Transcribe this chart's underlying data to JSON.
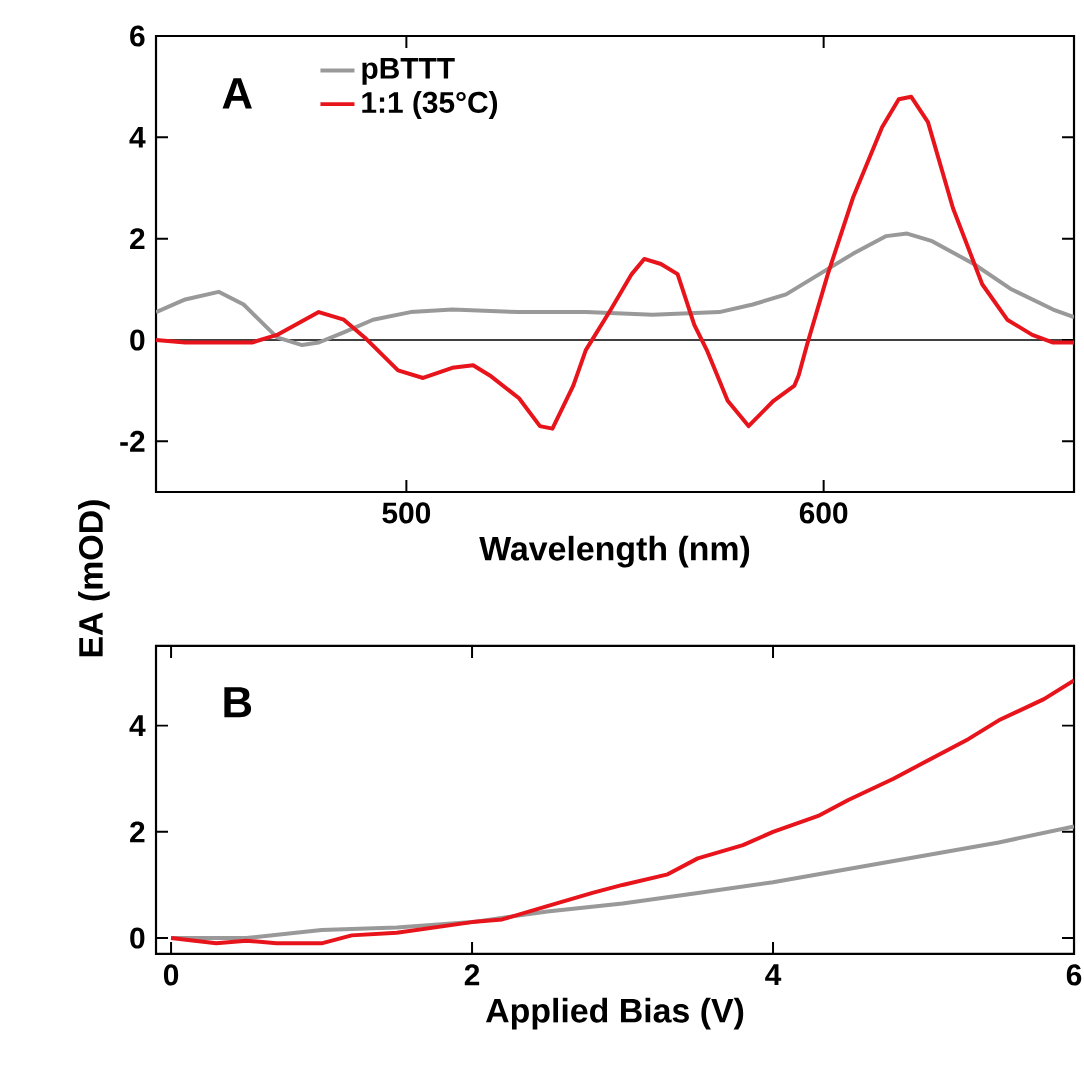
{
  "chart_data": [
    {
      "type": "line",
      "xlabel": "Wavelength (nm)",
      "ylabel": "EA (mOD)",
      "annotations": [
        "A"
      ],
      "legend": "top left",
      "xlim": [
        440,
        660
      ],
      "xticks": [
        500,
        600
      ],
      "ylim": [
        -3,
        6
      ],
      "yticks": [
        -2,
        0,
        2,
        4,
        6
      ],
      "ref_lines": [
        {
          "axis": "y",
          "value": 0,
          "color": "#000000"
        }
      ],
      "series": [
        {
          "name": "pBTTT",
          "color": "#999999",
          "x": [
            440,
            447,
            455,
            461,
            469,
            475,
            479,
            485,
            492,
            501,
            511,
            527,
            543,
            559,
            575,
            583,
            591,
            599,
            607,
            615,
            620,
            626,
            636,
            645,
            655,
            660
          ],
          "values": [
            0.55,
            0.8,
            0.95,
            0.7,
            0.05,
            -0.1,
            -0.05,
            0.15,
            0.4,
            0.55,
            0.6,
            0.55,
            0.55,
            0.5,
            0.55,
            0.7,
            0.9,
            1.3,
            1.7,
            2.05,
            2.1,
            1.95,
            1.5,
            1.0,
            0.6,
            0.45
          ]
        },
        {
          "name": "1:1 (35°C)",
          "color": "#e8141b",
          "x": [
            440,
            447,
            463,
            469,
            479,
            485,
            490,
            498,
            504,
            511,
            516,
            520,
            527,
            532,
            535,
            540,
            543,
            549,
            554,
            557,
            561,
            565,
            569,
            572,
            577,
            582,
            588,
            593,
            594,
            596,
            601,
            607,
            614,
            618,
            621,
            625,
            631,
            638,
            644,
            650,
            655,
            660
          ],
          "values": [
            0,
            -0.05,
            -0.05,
            0.1,
            0.55,
            0.4,
            0.05,
            -0.6,
            -0.75,
            -0.55,
            -0.5,
            -0.7,
            -1.15,
            -1.7,
            -1.75,
            -0.9,
            -0.2,
            0.6,
            1.3,
            1.6,
            1.5,
            1.3,
            0.3,
            -0.2,
            -1.2,
            -1.7,
            -1.2,
            -0.9,
            -0.7,
            -0.1,
            1.3,
            2.8,
            4.2,
            4.75,
            4.8,
            4.3,
            2.6,
            1.1,
            0.4,
            0.1,
            -0.05,
            -0.05
          ]
        }
      ]
    },
    {
      "type": "line",
      "xlabel": "Applied Bias (V)",
      "annotations": [
        "B"
      ],
      "xlim": [
        -0.1,
        6
      ],
      "xticks": [
        0,
        2,
        4,
        6
      ],
      "ylim": [
        -0.3,
        5.5
      ],
      "yticks": [
        0,
        2,
        4
      ],
      "series": [
        {
          "color": "#999999",
          "x": [
            0,
            0.5,
            1,
            1.5,
            2,
            2.5,
            3,
            3.5,
            4,
            4.5,
            5,
            5.5,
            6
          ],
          "values": [
            0,
            0,
            0.15,
            0.2,
            0.3,
            0.5,
            0.65,
            0.85,
            1.05,
            1.3,
            1.55,
            1.8,
            2.1
          ]
        },
        {
          "color": "#e8141b",
          "x": [
            0,
            0.3,
            0.5,
            0.7,
            1.0,
            1.2,
            1.5,
            2,
            2.2,
            2.5,
            2.8,
            3,
            3.3,
            3.5,
            3.8,
            4,
            4.3,
            4.5,
            4.8,
            5,
            5.3,
            5.5,
            5.8,
            6
          ],
          "values": [
            0,
            -0.1,
            -0.05,
            -0.1,
            -0.1,
            0.05,
            0.1,
            0.3,
            0.35,
            0.6,
            0.85,
            1.0,
            1.2,
            1.5,
            1.75,
            2.0,
            2.3,
            2.6,
            3.0,
            3.3,
            3.75,
            4.1,
            4.5,
            4.85
          ]
        }
      ]
    }
  ]
}
